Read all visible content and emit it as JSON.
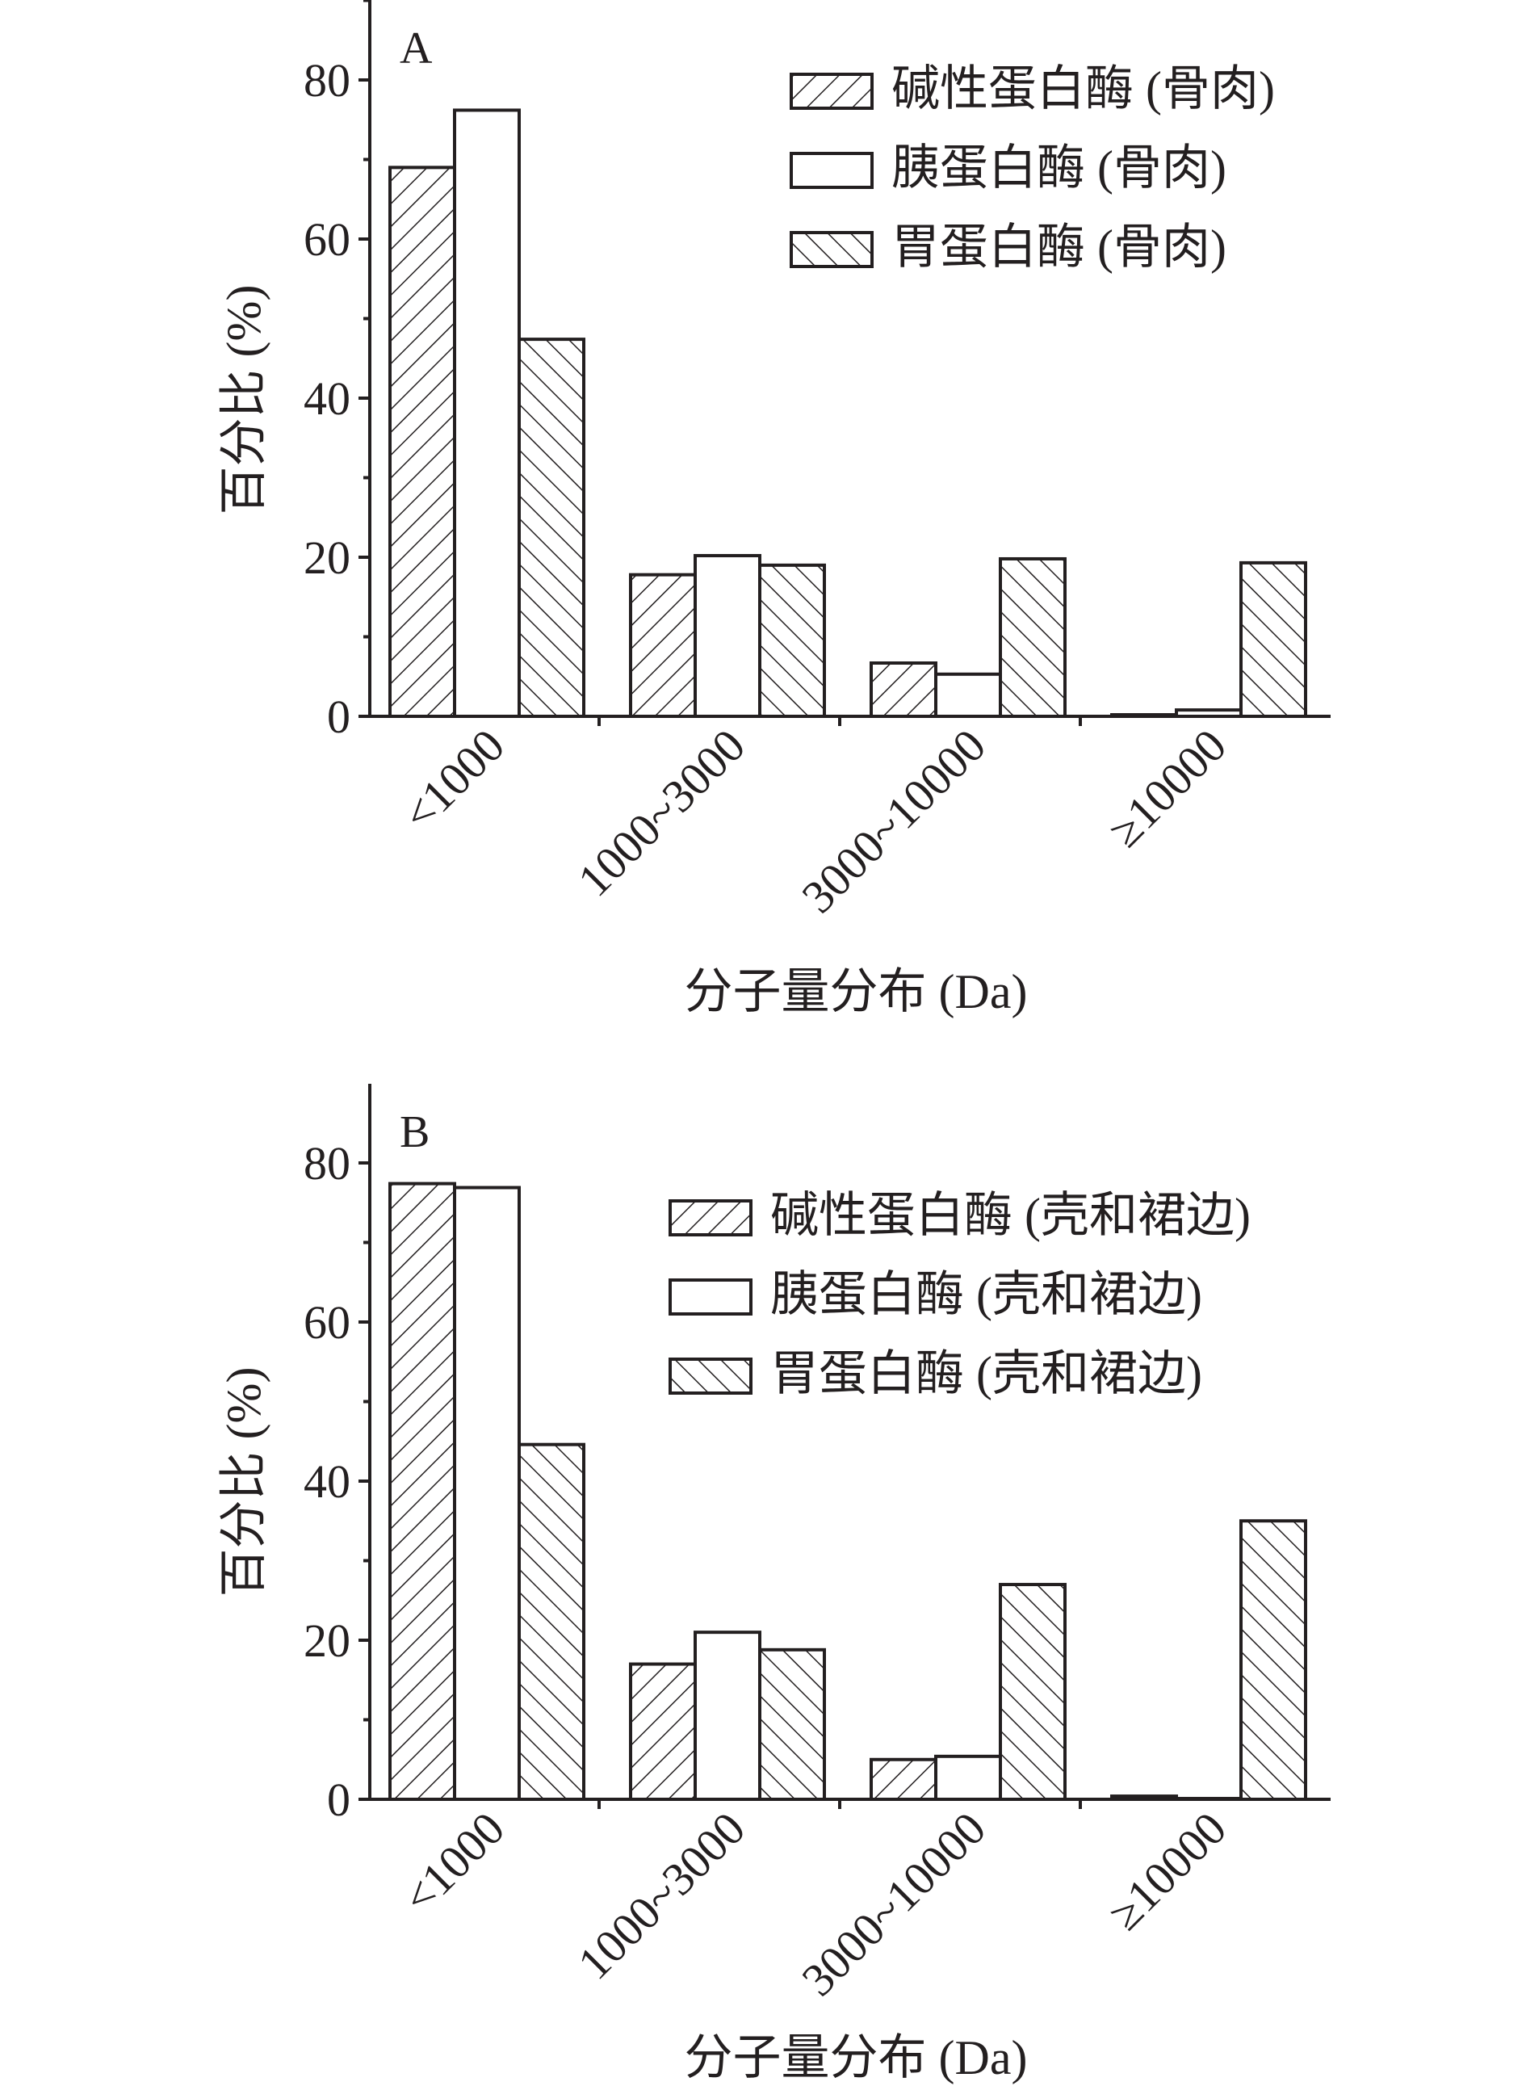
{
  "chart_data": [
    {
      "type": "bar",
      "panel_label": "A",
      "xlabel": "分子量分布 (Da)",
      "ylabel": "百分比 (%)",
      "ylim": [
        0,
        90
      ],
      "yticks": [
        0,
        20,
        40,
        60,
        80
      ],
      "categories": [
        "<1000",
        "1000~3000",
        "3000~10000",
        "≥10000"
      ],
      "series": [
        {
          "name": "碱性蛋白酶 (骨肉)",
          "pattern": "hatch-forward",
          "values": [
            69.0,
            17.8,
            6.7,
            0.2
          ]
        },
        {
          "name": "胰蛋白酶 (骨肉)",
          "pattern": "empty",
          "values": [
            76.2,
            20.2,
            5.3,
            0.8
          ]
        },
        {
          "name": "胃蛋白酶 (骨肉)",
          "pattern": "hatch-backward",
          "values": [
            47.4,
            19.0,
            19.8,
            19.3
          ]
        }
      ],
      "legend_position": "top-right",
      "grid": false
    },
    {
      "type": "bar",
      "panel_label": "B",
      "xlabel": "分子量分布 (Da)",
      "ylabel": "百分比 (%)",
      "ylim": [
        0,
        90
      ],
      "yticks": [
        0,
        20,
        40,
        60,
        80
      ],
      "categories": [
        "<1000",
        "1000~3000",
        "3000~10000",
        "≥10000"
      ],
      "series": [
        {
          "name": "碱性蛋白酶 (壳和裙边)",
          "pattern": "hatch-forward",
          "values": [
            77.4,
            17.0,
            5.0,
            0.4
          ]
        },
        {
          "name": "胰蛋白酶 (壳和裙边)",
          "pattern": "empty",
          "values": [
            76.9,
            21.0,
            5.4,
            0.1
          ]
        },
        {
          "name": "胃蛋白酶 (壳和裙边)",
          "pattern": "hatch-backward",
          "values": [
            44.6,
            18.8,
            27.0,
            35.0
          ]
        }
      ],
      "legend_position": "top-right",
      "grid": false
    }
  ],
  "colors": {
    "ink": "#231f20",
    "background": "#ffffff"
  }
}
